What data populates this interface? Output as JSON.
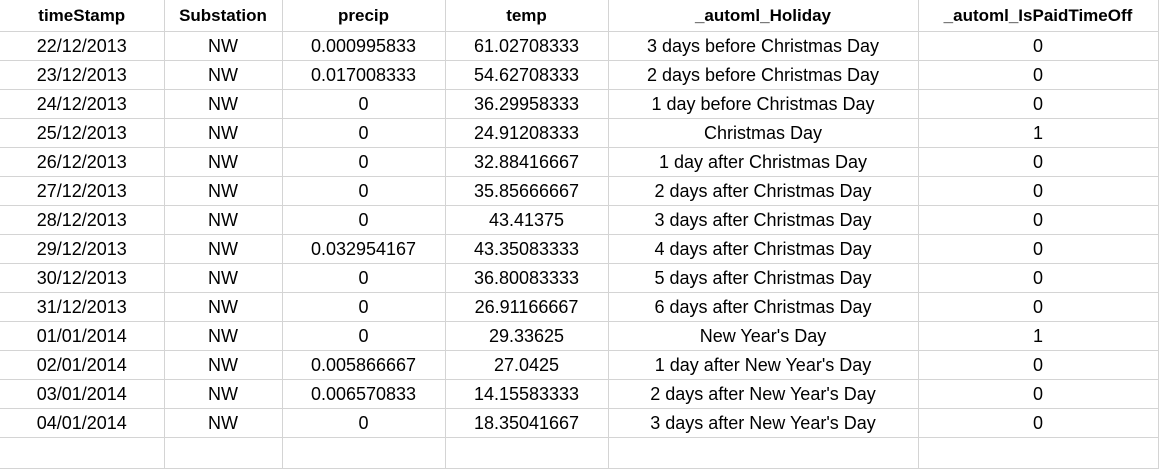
{
  "columns": [
    "timeStamp",
    "Substation",
    "precip",
    "temp",
    "_automl_Holiday",
    "_automl_IsPaidTimeOff"
  ],
  "rows": [
    [
      "22/12/2013",
      "NW",
      "0.000995833",
      "61.02708333",
      "3 days before Christmas Day",
      "0"
    ],
    [
      "23/12/2013",
      "NW",
      "0.017008333",
      "54.62708333",
      "2 days before Christmas Day",
      "0"
    ],
    [
      "24/12/2013",
      "NW",
      "0",
      "36.29958333",
      "1 day before Christmas Day",
      "0"
    ],
    [
      "25/12/2013",
      "NW",
      "0",
      "24.91208333",
      "Christmas Day",
      "1"
    ],
    [
      "26/12/2013",
      "NW",
      "0",
      "32.88416667",
      "1 day after Christmas Day",
      "0"
    ],
    [
      "27/12/2013",
      "NW",
      "0",
      "35.85666667",
      "2 days after Christmas Day",
      "0"
    ],
    [
      "28/12/2013",
      "NW",
      "0",
      "43.41375",
      "3 days after Christmas Day",
      "0"
    ],
    [
      "29/12/2013",
      "NW",
      "0.032954167",
      "43.35083333",
      "4 days after Christmas Day",
      "0"
    ],
    [
      "30/12/2013",
      "NW",
      "0",
      "36.80083333",
      "5 days after Christmas Day",
      "0"
    ],
    [
      "31/12/2013",
      "NW",
      "0",
      "26.91166667",
      "6 days after Christmas Day",
      "0"
    ],
    [
      "01/01/2014",
      "NW",
      "0",
      "29.33625",
      "New Year's Day",
      "1"
    ],
    [
      "02/01/2014",
      "NW",
      "0.005866667",
      "27.0425",
      "1 day after New Year's Day",
      "0"
    ],
    [
      "03/01/2014",
      "NW",
      "0.006570833",
      "14.15583333",
      "2 days after New Year's Day",
      "0"
    ],
    [
      "04/01/2014",
      "NW",
      "0",
      "18.35041667",
      "3 days after New Year's Day",
      "0"
    ]
  ]
}
